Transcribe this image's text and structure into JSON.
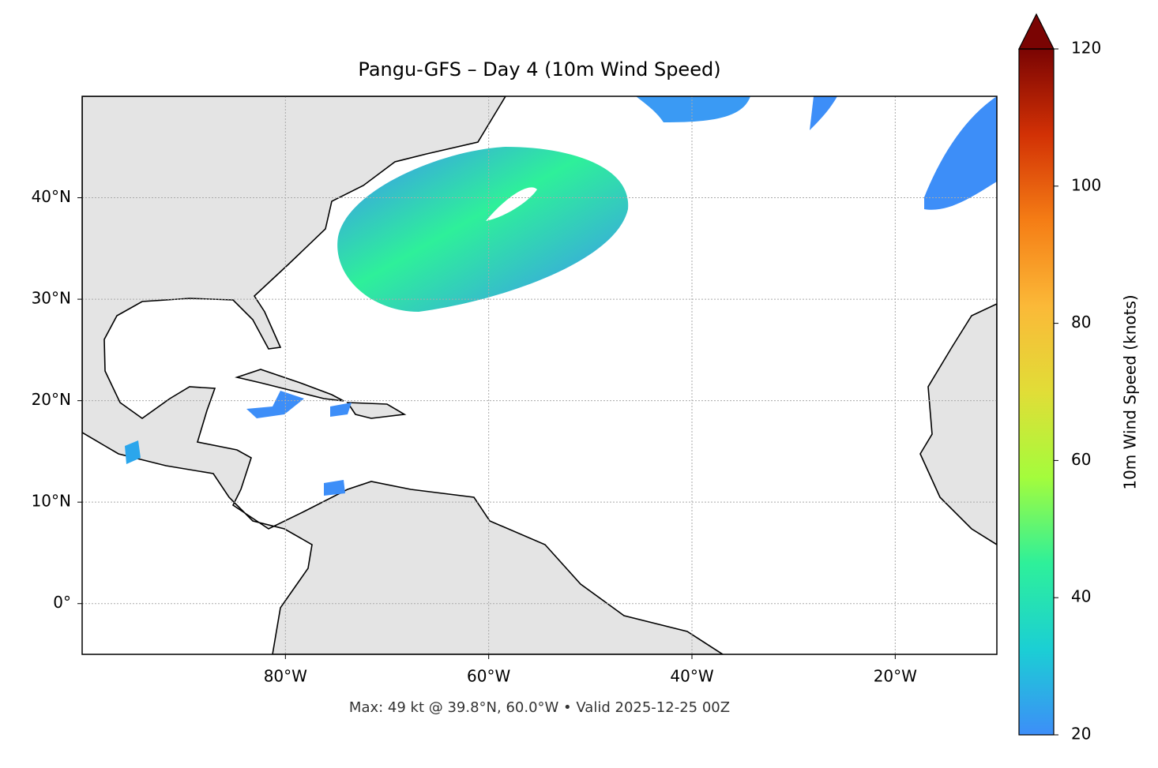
{
  "map": {
    "title": "Pangu-GFS – Day 4 (10m Wind Speed)",
    "xlim": [
      -100,
      -10
    ],
    "ylim": [
      -5,
      50
    ],
    "xticks": [
      {
        "value": -80,
        "label": "80°W"
      },
      {
        "value": -60,
        "label": "60°W"
      },
      {
        "value": -40,
        "label": "40°W"
      },
      {
        "value": -20,
        "label": "20°W"
      }
    ],
    "yticks": [
      {
        "value": 0,
        "label": "0°"
      },
      {
        "value": 10,
        "label": "10°N"
      },
      {
        "value": 20,
        "label": "20°N"
      },
      {
        "value": 30,
        "label": "30°N"
      },
      {
        "value": 40,
        "label": "40°N"
      }
    ],
    "grid": true,
    "note": "Max: 49 kt @ 39.8°N, 60.0°W • Valid 2025-12-25 00Z",
    "colorbar": {
      "label": "10m Wind Speed (knots)",
      "lim": [
        20,
        120
      ],
      "ticks": [
        20,
        40,
        60,
        80,
        100,
        120
      ],
      "colors": [
        "#3d8ef8",
        "#1bcfd4",
        "#2ef09a",
        "#a4fc3c",
        "#e1dd37",
        "#fbb938",
        "#f57d15",
        "#d23105",
        "#7a0403"
      ],
      "extend": "max"
    }
  }
}
